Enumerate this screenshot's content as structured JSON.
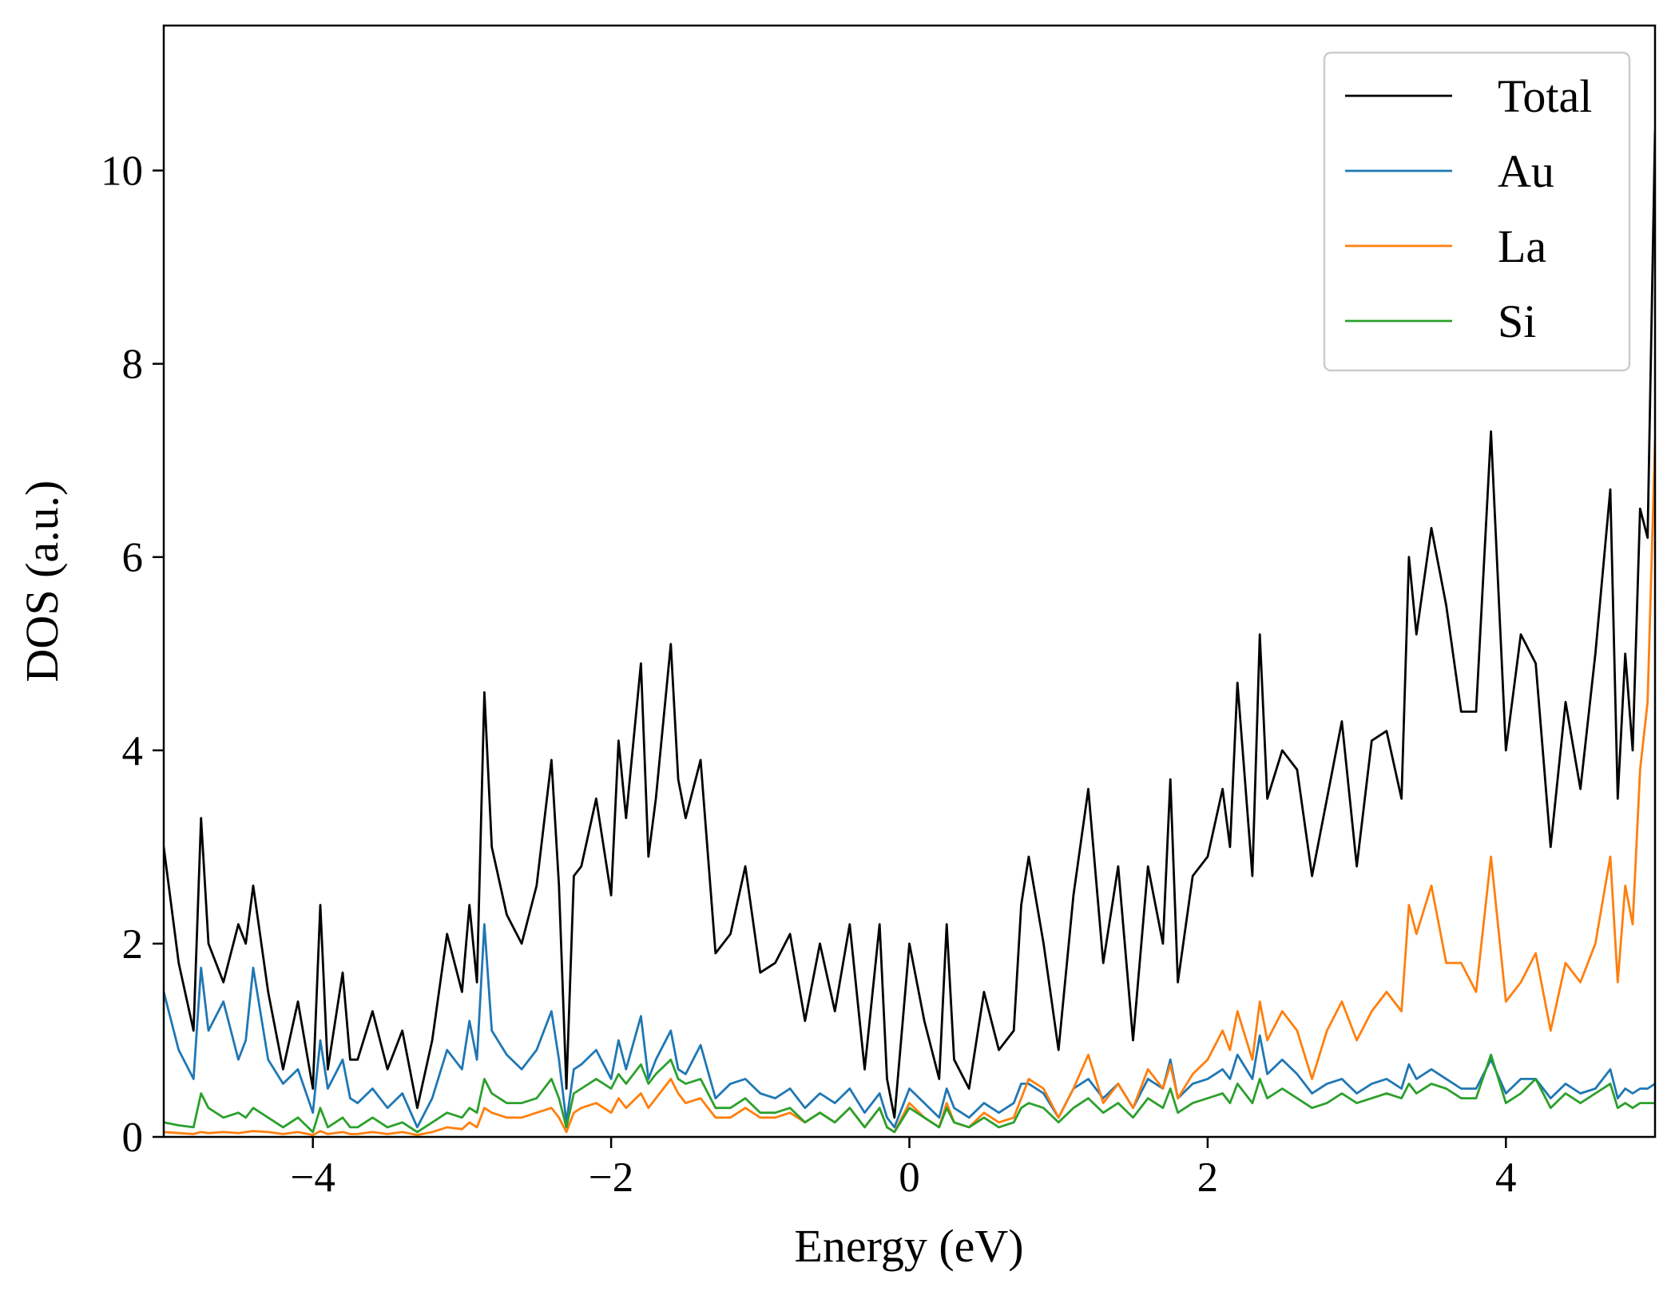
{
  "chart_data": {
    "type": "line",
    "title": "",
    "xlabel": "Energy (eV)",
    "ylabel": "DOS (a.u.)",
    "xlim": [
      -5,
      5
    ],
    "ylim": [
      0,
      11.5
    ],
    "x_ticks": [
      -4,
      -2,
      0,
      2,
      4
    ],
    "x_tick_labels": [
      "−4",
      "−2",
      "0",
      "2",
      "4"
    ],
    "y_ticks": [
      0,
      2,
      4,
      6,
      8,
      10
    ],
    "y_tick_labels": [
      "0",
      "2",
      "4",
      "6",
      "8",
      "10"
    ],
    "grid": false,
    "legend_position": "top-right",
    "x": [
      -5.0,
      -4.9,
      -4.8,
      -4.75,
      -4.7,
      -4.6,
      -4.5,
      -4.45,
      -4.4,
      -4.3,
      -4.2,
      -4.1,
      -4.0,
      -3.95,
      -3.9,
      -3.8,
      -3.75,
      -3.7,
      -3.6,
      -3.5,
      -3.4,
      -3.3,
      -3.2,
      -3.1,
      -3.0,
      -2.95,
      -2.9,
      -2.85,
      -2.8,
      -2.7,
      -2.6,
      -2.5,
      -2.4,
      -2.35,
      -2.3,
      -2.25,
      -2.2,
      -2.1,
      -2.0,
      -1.95,
      -1.9,
      -1.8,
      -1.75,
      -1.7,
      -1.6,
      -1.55,
      -1.5,
      -1.4,
      -1.3,
      -1.2,
      -1.1,
      -1.0,
      -0.9,
      -0.8,
      -0.7,
      -0.6,
      -0.5,
      -0.4,
      -0.3,
      -0.2,
      -0.15,
      -0.1,
      0.0,
      0.1,
      0.2,
      0.25,
      0.3,
      0.4,
      0.5,
      0.6,
      0.7,
      0.75,
      0.8,
      0.9,
      1.0,
      1.1,
      1.2,
      1.3,
      1.4,
      1.5,
      1.6,
      1.7,
      1.75,
      1.8,
      1.9,
      2.0,
      2.1,
      2.15,
      2.2,
      2.3,
      2.35,
      2.4,
      2.5,
      2.6,
      2.7,
      2.8,
      2.9,
      3.0,
      3.1,
      3.2,
      3.3,
      3.35,
      3.4,
      3.5,
      3.6,
      3.7,
      3.8,
      3.9,
      4.0,
      4.1,
      4.2,
      4.3,
      4.4,
      4.5,
      4.6,
      4.7,
      4.75,
      4.8,
      4.85,
      4.9,
      4.95,
      5.0
    ],
    "series": [
      {
        "name": "Total",
        "color": "#000000",
        "values": [
          3.0,
          1.8,
          1.1,
          3.3,
          2.0,
          1.6,
          2.2,
          2.0,
          2.6,
          1.5,
          0.7,
          1.4,
          0.5,
          2.4,
          0.7,
          1.7,
          0.8,
          0.8,
          1.3,
          0.7,
          1.1,
          0.3,
          1.0,
          2.1,
          1.5,
          2.4,
          1.6,
          4.6,
          3.0,
          2.3,
          2.0,
          2.6,
          3.9,
          2.6,
          0.5,
          2.7,
          2.8,
          3.5,
          2.5,
          4.1,
          3.3,
          4.9,
          2.9,
          3.5,
          5.1,
          3.7,
          3.3,
          3.9,
          1.9,
          2.1,
          2.8,
          1.7,
          1.8,
          2.1,
          1.2,
          2.0,
          1.3,
          2.2,
          0.7,
          2.2,
          0.6,
          0.2,
          2.0,
          1.2,
          0.6,
          2.2,
          0.8,
          0.5,
          1.5,
          0.9,
          1.1,
          2.4,
          2.9,
          2.0,
          0.9,
          2.5,
          3.6,
          1.8,
          2.8,
          1.0,
          2.8,
          2.0,
          3.7,
          1.6,
          2.7,
          2.9,
          3.6,
          3.0,
          4.7,
          2.7,
          5.2,
          3.5,
          4.0,
          3.8,
          2.7,
          3.5,
          4.3,
          2.8,
          4.1,
          4.2,
          3.5,
          6.0,
          5.2,
          6.3,
          5.5,
          4.4,
          4.4,
          7.3,
          4.0,
          5.2,
          4.9,
          3.0,
          4.5,
          3.6,
          5.0,
          6.7,
          3.5,
          5.0,
          4.0,
          6.5,
          6.2,
          10.4
        ]
      },
      {
        "name": "Au",
        "color": "#1f77b4",
        "values": [
          1.5,
          0.9,
          0.6,
          1.75,
          1.1,
          1.4,
          0.8,
          1.0,
          1.75,
          0.8,
          0.55,
          0.7,
          0.25,
          1.0,
          0.5,
          0.8,
          0.4,
          0.35,
          0.5,
          0.3,
          0.45,
          0.1,
          0.4,
          0.9,
          0.7,
          1.2,
          0.8,
          2.2,
          1.1,
          0.85,
          0.7,
          0.9,
          1.3,
          0.8,
          0.15,
          0.7,
          0.75,
          0.9,
          0.6,
          1.0,
          0.7,
          1.25,
          0.6,
          0.8,
          1.1,
          0.7,
          0.65,
          0.95,
          0.4,
          0.55,
          0.6,
          0.45,
          0.4,
          0.5,
          0.3,
          0.45,
          0.35,
          0.5,
          0.25,
          0.45,
          0.2,
          0.1,
          0.5,
          0.35,
          0.2,
          0.5,
          0.3,
          0.2,
          0.35,
          0.25,
          0.35,
          0.55,
          0.55,
          0.45,
          0.2,
          0.5,
          0.6,
          0.4,
          0.55,
          0.3,
          0.6,
          0.5,
          0.8,
          0.4,
          0.55,
          0.6,
          0.7,
          0.6,
          0.85,
          0.6,
          1.05,
          0.65,
          0.8,
          0.65,
          0.45,
          0.55,
          0.6,
          0.45,
          0.55,
          0.6,
          0.5,
          0.75,
          0.6,
          0.7,
          0.6,
          0.5,
          0.5,
          0.8,
          0.45,
          0.6,
          0.6,
          0.4,
          0.55,
          0.45,
          0.5,
          0.7,
          0.4,
          0.5,
          0.45,
          0.5,
          0.5,
          0.55
        ]
      },
      {
        "name": "La",
        "color": "#ff7f0e",
        "values": [
          0.05,
          0.04,
          0.03,
          0.05,
          0.04,
          0.05,
          0.04,
          0.05,
          0.06,
          0.05,
          0.03,
          0.05,
          0.02,
          0.06,
          0.03,
          0.05,
          0.03,
          0.03,
          0.05,
          0.03,
          0.05,
          0.02,
          0.05,
          0.1,
          0.08,
          0.15,
          0.1,
          0.3,
          0.25,
          0.2,
          0.2,
          0.25,
          0.3,
          0.2,
          0.05,
          0.25,
          0.3,
          0.35,
          0.25,
          0.4,
          0.3,
          0.45,
          0.3,
          0.4,
          0.6,
          0.45,
          0.35,
          0.4,
          0.2,
          0.2,
          0.3,
          0.2,
          0.2,
          0.25,
          0.15,
          0.25,
          0.15,
          0.3,
          0.1,
          0.3,
          0.1,
          0.05,
          0.35,
          0.2,
          0.1,
          0.35,
          0.15,
          0.1,
          0.25,
          0.15,
          0.2,
          0.4,
          0.6,
          0.5,
          0.2,
          0.5,
          0.85,
          0.35,
          0.55,
          0.3,
          0.7,
          0.5,
          0.75,
          0.4,
          0.65,
          0.8,
          1.1,
          0.9,
          1.3,
          0.8,
          1.4,
          1.0,
          1.3,
          1.1,
          0.6,
          1.1,
          1.4,
          1.0,
          1.3,
          1.5,
          1.3,
          2.4,
          2.1,
          2.6,
          1.8,
          1.8,
          1.5,
          2.9,
          1.4,
          1.6,
          1.9,
          1.1,
          1.8,
          1.6,
          2.0,
          2.9,
          1.6,
          2.6,
          2.2,
          3.8,
          4.5,
          7.2
        ]
      },
      {
        "name": "Si",
        "color": "#2ca02c",
        "values": [
          0.15,
          0.12,
          0.1,
          0.45,
          0.3,
          0.2,
          0.25,
          0.2,
          0.3,
          0.2,
          0.1,
          0.2,
          0.05,
          0.3,
          0.1,
          0.2,
          0.1,
          0.1,
          0.2,
          0.1,
          0.15,
          0.05,
          0.15,
          0.25,
          0.2,
          0.3,
          0.25,
          0.6,
          0.45,
          0.35,
          0.35,
          0.4,
          0.6,
          0.4,
          0.1,
          0.45,
          0.5,
          0.6,
          0.5,
          0.65,
          0.55,
          0.75,
          0.55,
          0.65,
          0.8,
          0.6,
          0.55,
          0.6,
          0.3,
          0.3,
          0.4,
          0.25,
          0.25,
          0.3,
          0.15,
          0.25,
          0.15,
          0.3,
          0.1,
          0.3,
          0.1,
          0.05,
          0.3,
          0.2,
          0.1,
          0.3,
          0.15,
          0.1,
          0.2,
          0.1,
          0.15,
          0.3,
          0.35,
          0.3,
          0.15,
          0.3,
          0.4,
          0.25,
          0.35,
          0.2,
          0.4,
          0.3,
          0.5,
          0.25,
          0.35,
          0.4,
          0.45,
          0.35,
          0.55,
          0.35,
          0.6,
          0.4,
          0.5,
          0.4,
          0.3,
          0.35,
          0.45,
          0.35,
          0.4,
          0.45,
          0.4,
          0.55,
          0.45,
          0.55,
          0.5,
          0.4,
          0.4,
          0.85,
          0.35,
          0.45,
          0.6,
          0.3,
          0.45,
          0.35,
          0.45,
          0.55,
          0.3,
          0.35,
          0.3,
          0.35,
          0.35,
          0.35
        ]
      }
    ]
  }
}
